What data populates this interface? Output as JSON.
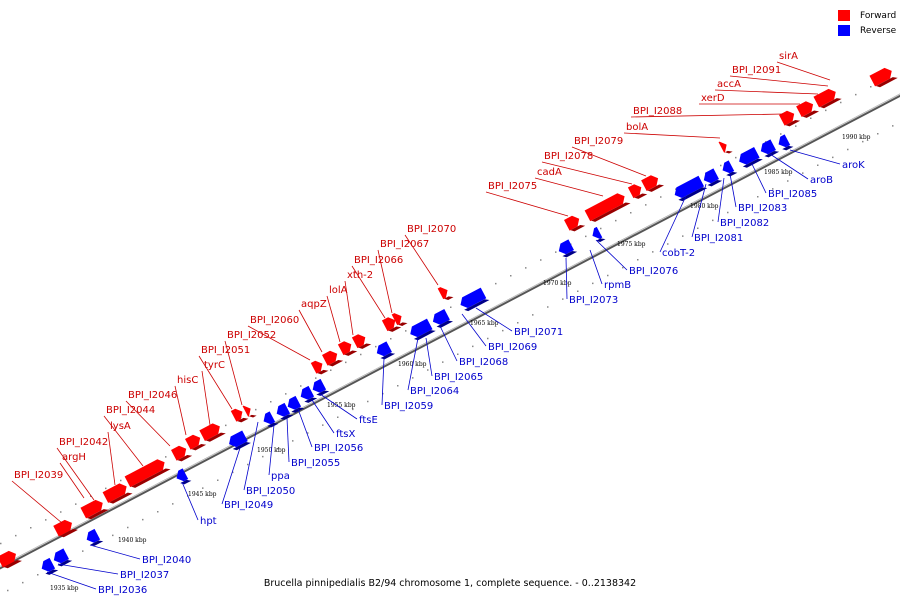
{
  "legend": [
    {
      "label": "Forward",
      "color": "#ff0000"
    },
    {
      "label": "Reverse",
      "color": "#0000ff"
    }
  ],
  "caption": "Brucella pinnipedialis B2/94 chromosome 1, complete sequence. - 0..2138342",
  "colors": {
    "forward": "#ff0000",
    "reverse": "#0000ff",
    "backbone": "#555555",
    "forward_text": "#cc0000",
    "reverse_text": "#0000cc"
  },
  "scale_labels": [
    "1935 kbp",
    "1940 kbp",
    "1945 kbp",
    "1950 kbp",
    "1955 kbp",
    "1960 kbp",
    "1965 kbp",
    "1970 kbp",
    "1975 kbp",
    "1980 kbp",
    "1985 kbp",
    "1990 kbp"
  ],
  "forward_genes": [
    "BPI_I2039",
    "argH",
    "BPI_I2042",
    "lysA",
    "BPI_I2044",
    "BPI_I2046",
    "hisC",
    "tyrC",
    "BPI_I2051",
    "BPI_I2052",
    "BPI_I2060",
    "aqpZ",
    "lolA",
    "xth-2",
    "BPI_I2066",
    "BPI_I2067",
    "BPI_I2070",
    "BPI_I2075",
    "cadA",
    "BPI_I2078",
    "BPI_I2079",
    "bolA",
    "BPI_I2088",
    "xerD",
    "accA",
    "BPI_I2091",
    "sirA"
  ],
  "reverse_genes": [
    "BPI_I2036",
    "BPI_I2037",
    "BPI_I2040",
    "hpt",
    "BPI_I2049",
    "BPI_I2050",
    "ppa",
    "BPI_I2055",
    "BPI_I2056",
    "ftsX",
    "ftsE",
    "BPI_I2059",
    "BPI_I2064",
    "BPI_I2065",
    "BPI_I2068",
    "BPI_I2069",
    "BPI_I2071",
    "BPI_I2073",
    "rpmB",
    "BPI_I2076",
    "cobT-2",
    "BPI_I2081",
    "BPI_I2082",
    "BPI_I2083",
    "BPI_I2085",
    "aroB",
    "aroK"
  ]
}
